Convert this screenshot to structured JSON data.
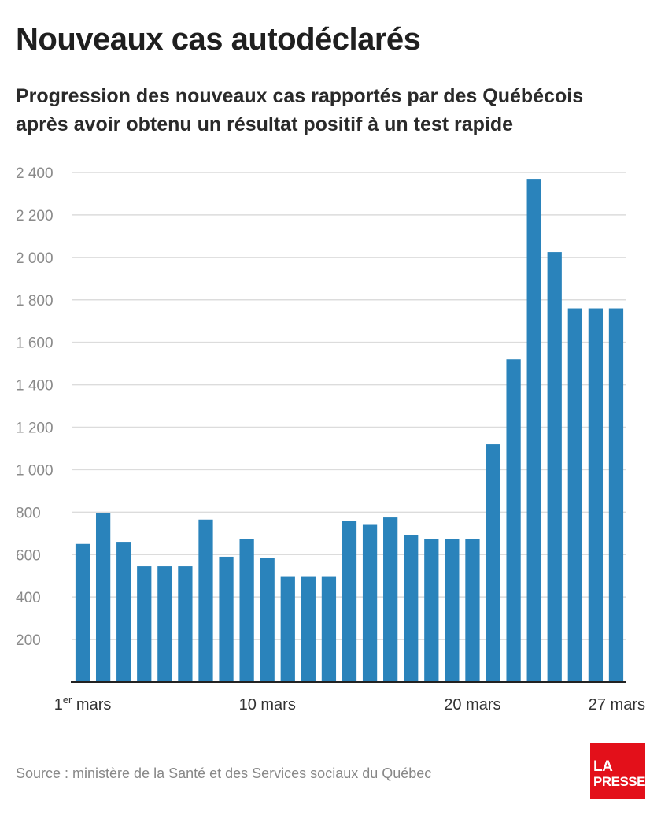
{
  "header": {
    "title": "Nouveaux cas autodéclarés",
    "subtitle": "Progression des nouveaux cas rapportés par des Québécois après avoir obtenu un résultat positif à un test rapide"
  },
  "footer": {
    "source": "Source : ministère de la Santé et des Services sociaux du Québec",
    "logo_line1": "LA",
    "logo_line2": "PRESSE"
  },
  "colors": {
    "bar": "#2a83bb",
    "grid": "#dcdcdc",
    "axis": "#222222",
    "logo": "#e3101a"
  },
  "chart_data": {
    "type": "bar",
    "title": "Nouveaux cas autodéclarés",
    "xlabel": "",
    "ylabel": "",
    "ylim": [
      0,
      2400
    ],
    "yticks": [
      200,
      400,
      600,
      800,
      1000,
      1200,
      1400,
      1600,
      1800,
      2000,
      2200,
      2400
    ],
    "ytick_labels": [
      "200",
      "400",
      "600",
      "800",
      "1 000",
      "1 200",
      "1 400",
      "1 600",
      "1 800",
      "2 000",
      "2 200",
      "2 400"
    ],
    "grid": true,
    "categories": [
      "1",
      "2",
      "3",
      "4",
      "5",
      "6",
      "7",
      "8",
      "9",
      "10",
      "11",
      "12",
      "13",
      "14",
      "15",
      "16",
      "17",
      "18",
      "19",
      "20",
      "21",
      "22",
      "23",
      "24",
      "25",
      "26",
      "27"
    ],
    "values": [
      650,
      795,
      660,
      545,
      545,
      545,
      765,
      590,
      675,
      585,
      495,
      495,
      495,
      760,
      740,
      775,
      690,
      675,
      675,
      675,
      1120,
      1520,
      2370,
      2025,
      1760,
      1760,
      1760
    ],
    "x_tick_labels": [
      {
        "index": 0,
        "main": "1",
        "sup": "er",
        "rest": " mars"
      },
      {
        "index": 9,
        "main": "10 mars",
        "sup": "",
        "rest": ""
      },
      {
        "index": 19,
        "main": "20 mars",
        "sup": "",
        "rest": ""
      },
      {
        "index": 26,
        "main": "27 mars",
        "sup": "",
        "rest": ""
      }
    ]
  }
}
